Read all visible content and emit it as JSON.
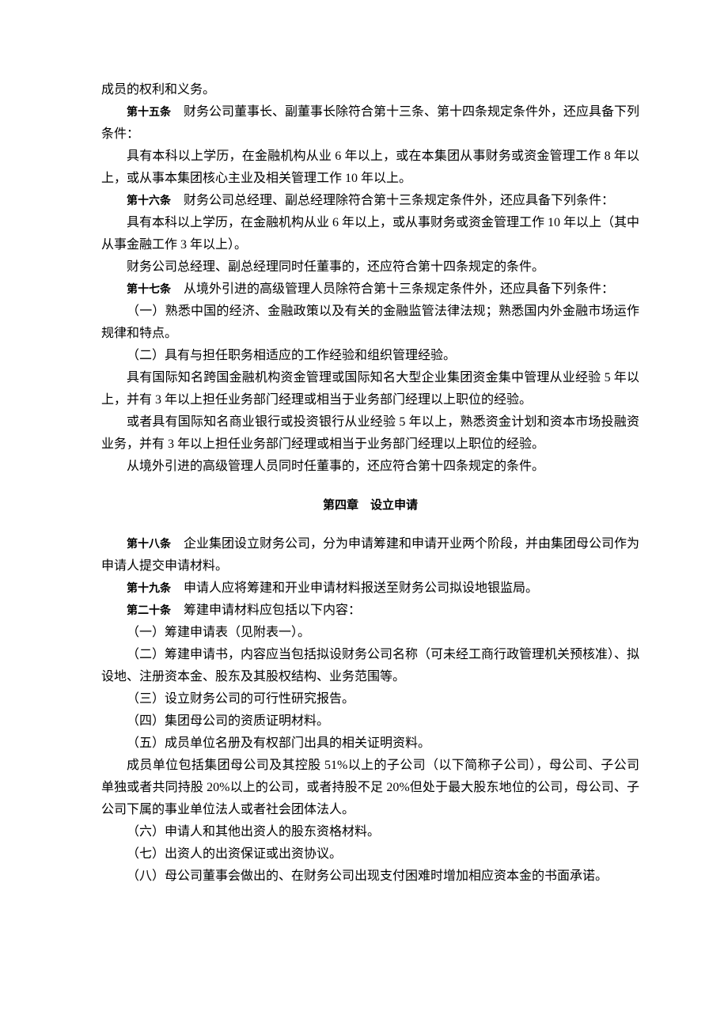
{
  "colors": {
    "background": "#ffffff",
    "text": "#000000"
  },
  "typography": {
    "body_font": "SimSun",
    "body_size_pt": 12,
    "label_font": "SimHei",
    "label_size_pt": 10.5,
    "chapter_font": "SimHei",
    "chapter_size_pt": 11,
    "line_height": 1.75
  },
  "p0": "成员的权利和义务。",
  "a15_label": "第十五条",
  "a15_text": "　财务公司董事长、副董事长除符合第十三条、第十四条规定条件外，还应具备下列条件：",
  "p1": "具有本科以上学历，在金融机构从业 6 年以上，或在本集团从事财务或资金管理工作 8 年以上，或从事本集团核心主业及相关管理工作 10 年以上。",
  "a16_label": "第十六条",
  "a16_text": "　财务公司总经理、副总经理除符合第十三条规定条件外，还应具备下列条件：",
  "p2": "具有本科以上学历，在金融机构从业 6 年以上，或从事财务或资金管理工作 10 年以上（其中从事金融工作 3 年以上）。",
  "p3": "财务公司总经理、副总经理同时任董事的，还应符合第十四条规定的条件。",
  "a17_label": "第十七条",
  "a17_text": "　从境外引进的高级管理人员除符合第十三条规定条件外，还应具备下列条件：",
  "p4": "（一）熟悉中国的经济、金融政策以及有关的金融监管法律法规；熟悉国内外金融市场运作规律和特点。",
  "p5": "（二）具有与担任职务相适应的工作经验和组织管理经验。",
  "p6": "具有国际知名跨国金融机构资金管理或国际知名大型企业集团资金集中管理从业经验 5 年以上，并有 3 年以上担任业务部门经理或相当于业务部门经理以上职位的经验。",
  "p7": "或者具有国际知名商业银行或投资银行从业经验 5 年以上，熟悉资金计划和资本市场投融资业务，并有 3 年以上担任业务部门经理或相当于业务部门经理以上职位的经验。",
  "p8": "从境外引进的高级管理人员同时任董事的，还应符合第十四条规定的条件。",
  "chapter4": "第四章　设立申请",
  "a18_label": "第十八条",
  "a18_text": "　企业集团设立财务公司，分为申请筹建和申请开业两个阶段，并由集团母公司作为申请人提交申请材料。",
  "a19_label": "第十九条",
  "a19_text": "　申请人应将筹建和开业申请材料报送至财务公司拟设地银监局。",
  "a20_label": "第二十条",
  "a20_text": "　筹建申请材料应包括以下内容：",
  "p9": "（一）筹建申请表（见附表一）。",
  "p10": "（二）筹建申请书，内容应当包括拟设财务公司名称（可未经工商行政管理机关预核准）、拟设地、注册资本金、股东及其股权结构、业务范围等。",
  "p11": "（三）设立财务公司的可行性研究报告。",
  "p12": "（四）集团母公司的资质证明材料。",
  "p13": "（五）成员单位名册及有权部门出具的相关证明资料。",
  "p14": "成员单位包括集团母公司及其控股 51%以上的子公司（以下简称子公司），母公司、子公司单独或者共同持股 20%以上的公司，或者持股不足 20%但处于最大股东地位的公司，母公司、子公司下属的事业单位法人或者社会团体法人。",
  "p15": "（六）申请人和其他出资人的股东资格材料。",
  "p16": "（七）出资人的出资保证或出资协议。",
  "p17": "（八）母公司董事会做出的、在财务公司出现支付困难时增加相应资本金的书面承诺。"
}
